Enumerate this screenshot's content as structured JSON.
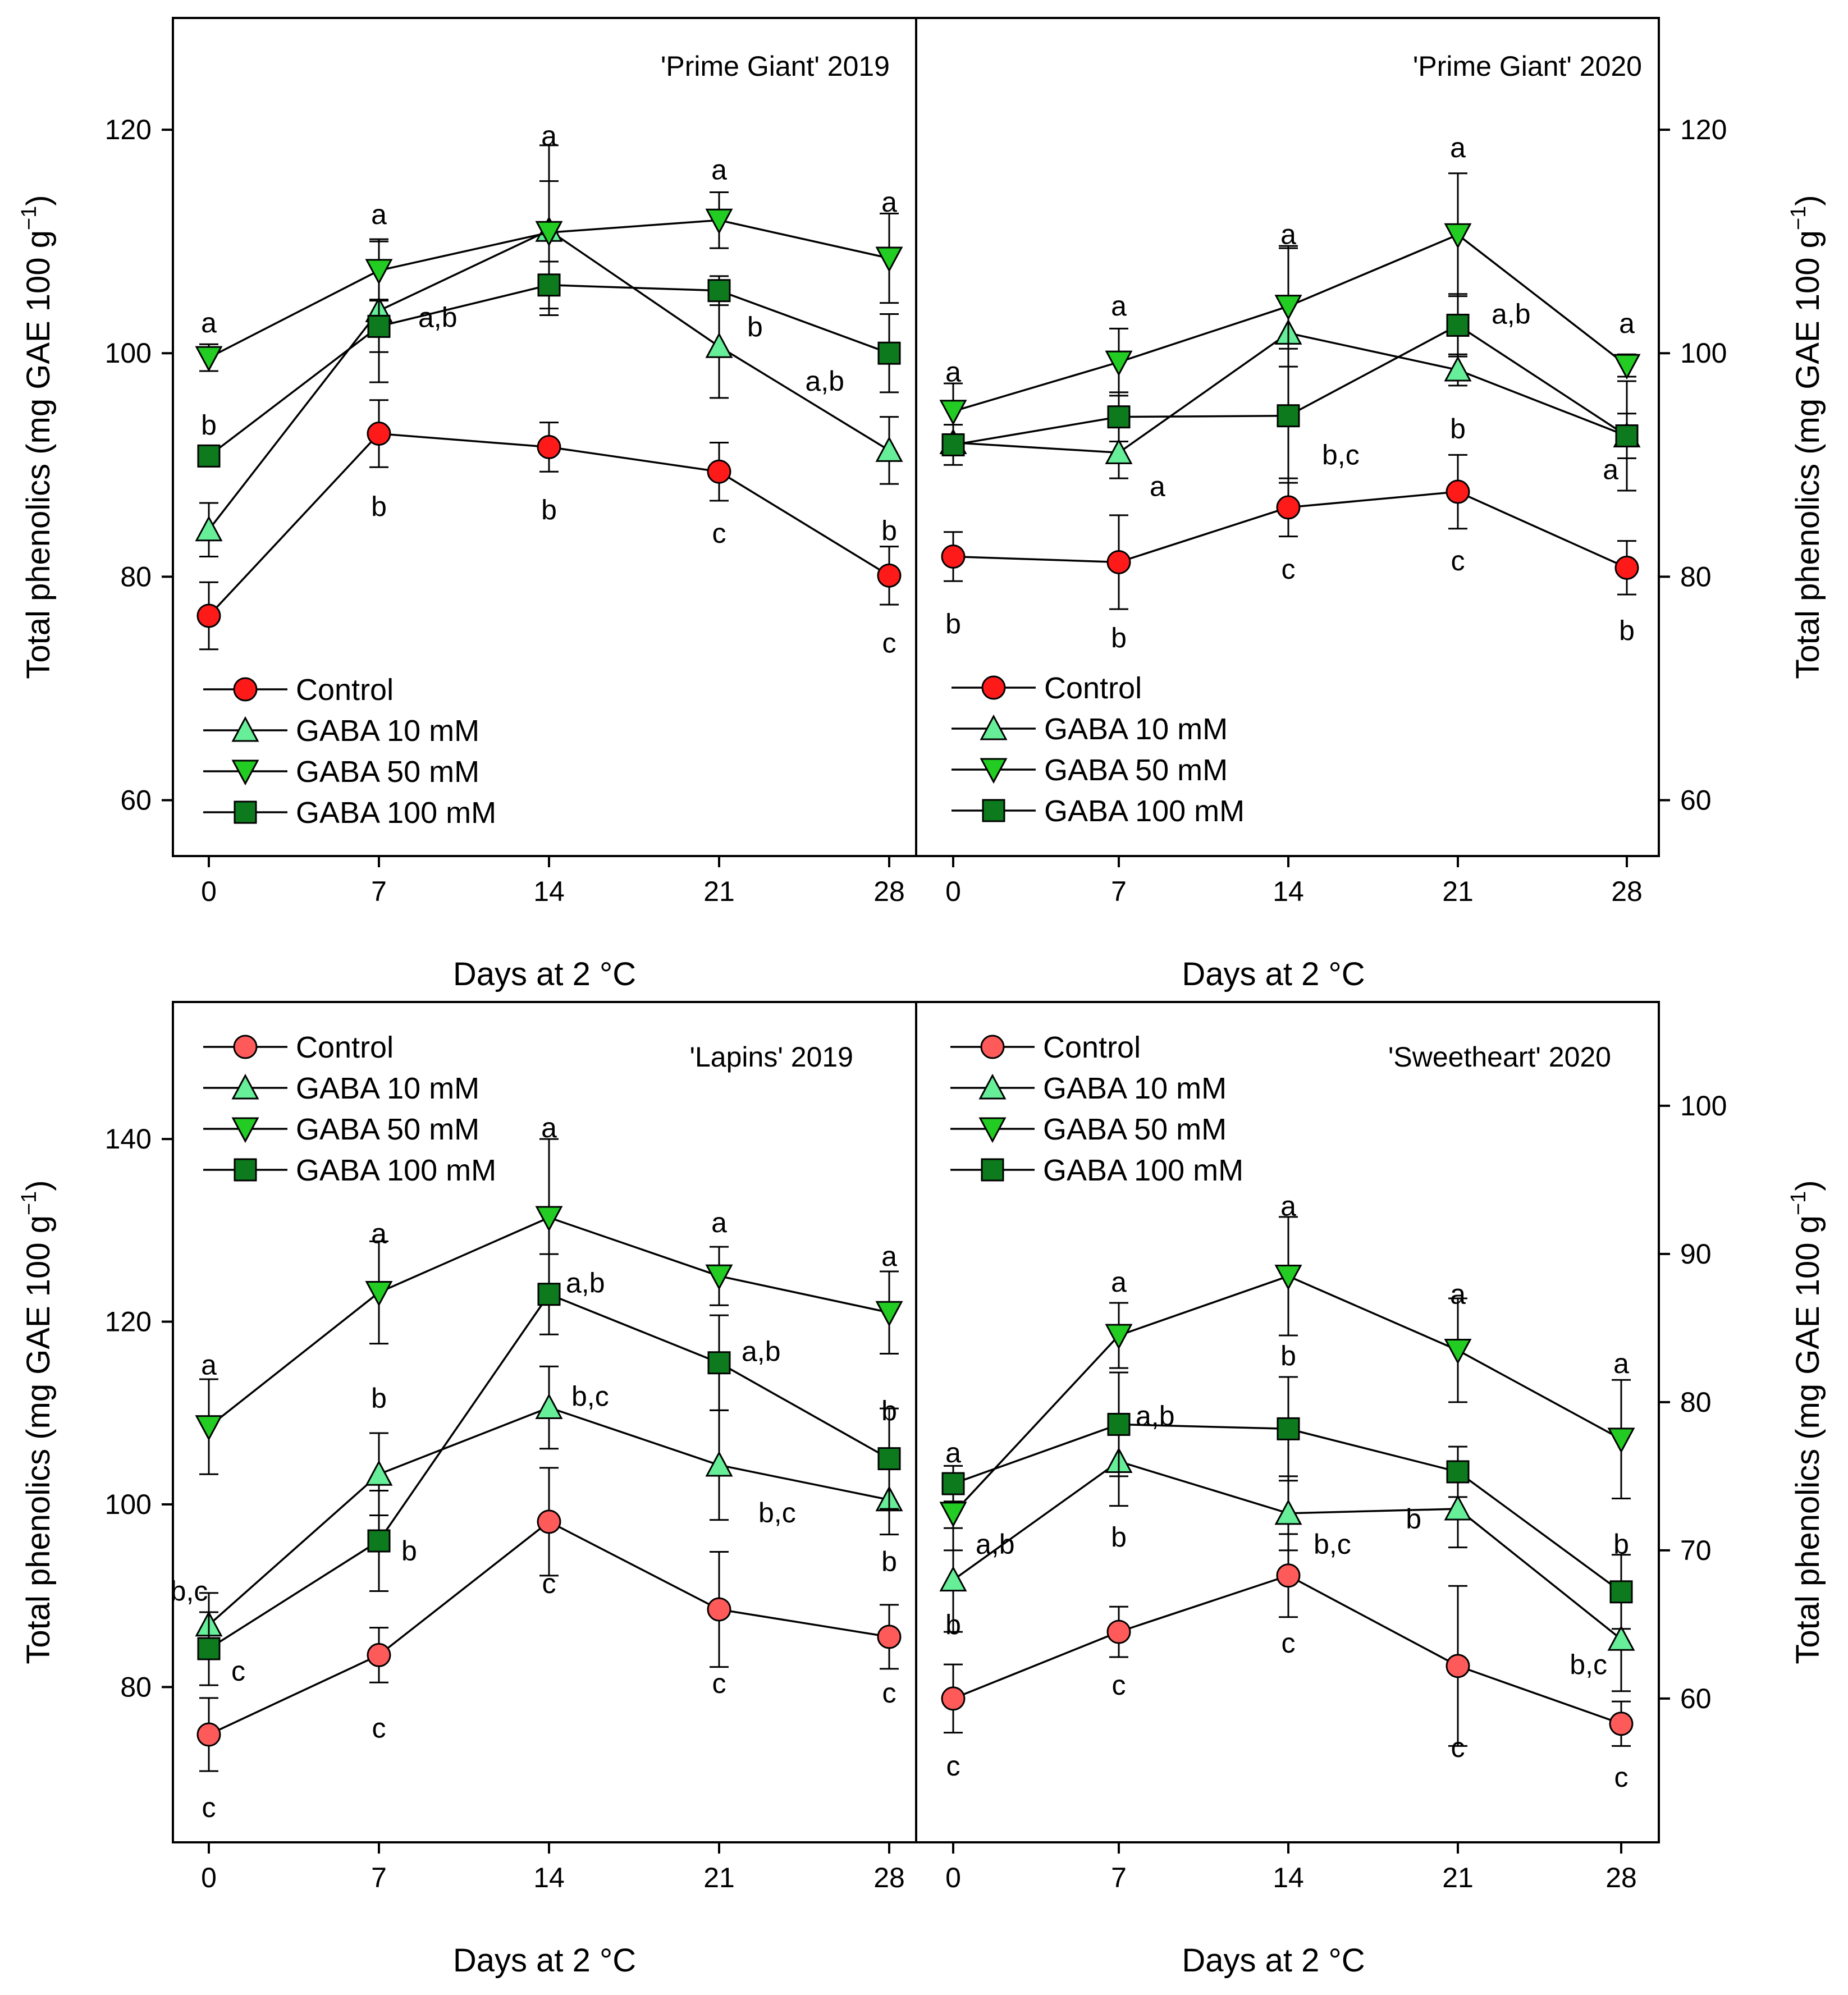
{
  "figure": {
    "x_axis_label": "Days at 2 °C",
    "y_axis_label": "Total phenolics (mg GAE 100 g",
    "y_axis_unit_exponent": "−1",
    "y_axis_label_close": ")"
  },
  "colors": {
    "Control": "#ff1a1a",
    "Control_light": "#ff5a5a",
    "GABA_10": "#66ee99",
    "GABA_50": "#22cc22",
    "GABA_100": "#0e7a1e",
    "axis": "#000000"
  },
  "chart_data": [
    {
      "type": "line",
      "title": "'Prime Giant' 2019",
      "xlabel": "Days at 2 °C",
      "ylabel": "Total phenolics (mg GAE 100 g−1)",
      "x": [
        0,
        7,
        14,
        21,
        28
      ],
      "x_ticks": [
        "0",
        "7",
        "14",
        "21",
        "28"
      ],
      "ylim": [
        55,
        130
      ],
      "y_ticks": [
        60,
        80,
        100,
        120
      ],
      "y_axis_side": "left",
      "legend_position": "bottom-left",
      "series": [
        {
          "name": "Control",
          "marker": "circle",
          "color": "#ff1a1a",
          "values": [
            76.5,
            92.8,
            91.6,
            89.4,
            80.1
          ],
          "errors": [
            3.0,
            3.0,
            2.2,
            2.6,
            2.6
          ],
          "labels": [
            "",
            "b",
            "b",
            "c",
            "c"
          ]
        },
        {
          "name": "GABA  10 mM",
          "marker": "triangle-up",
          "color": "#66ee99",
          "values": [
            84.2,
            103.8,
            111.0,
            100.6,
            91.3
          ],
          "errors": [
            2.4,
            6.4,
            7.6,
            4.6,
            3.0
          ],
          "labels": [
            "",
            "a,b",
            "",
            "b",
            "b"
          ]
        },
        {
          "name": "GABA  50 mM",
          "marker": "triangle-down",
          "color": "#22cc22",
          "values": [
            99.6,
            107.4,
            110.8,
            111.9,
            108.5
          ],
          "errors": [
            1.2,
            2.6,
            4.6,
            2.5,
            4.0
          ],
          "labels": [
            "a",
            "a",
            "a",
            "a",
            "a"
          ]
        },
        {
          "name": "GABA 100 mM",
          "marker": "square",
          "color": "#0e7a1e",
          "values": [
            90.8,
            102.4,
            106.1,
            105.6,
            100.0
          ],
          "errors": [
            0.7,
            2.3,
            2.1,
            1.3,
            3.5
          ],
          "labels": [
            "b",
            "",
            "",
            "",
            "a,b"
          ]
        }
      ]
    },
    {
      "type": "line",
      "title": "'Prime Giant' 2020",
      "xlabel": "Days at 2 °C",
      "ylabel": "Total phenolics (mg GAE 100 g−1)",
      "x": [
        0,
        7,
        14,
        21,
        28
      ],
      "x_ticks": [
        "0",
        "7",
        "14",
        "21",
        "28"
      ],
      "ylim": [
        55,
        130
      ],
      "y_ticks": [
        60,
        80,
        100,
        120
      ],
      "y_axis_side": "right",
      "legend_position": "bottom-left",
      "series": [
        {
          "name": "Control",
          "marker": "circle",
          "color": "#ff1a1a",
          "values": [
            81.8,
            81.3,
            86.2,
            87.6,
            80.8
          ],
          "errors": [
            2.2,
            4.2,
            2.6,
            3.3,
            2.4
          ],
          "labels": [
            "b",
            "b",
            "c",
            "c",
            "b"
          ]
        },
        {
          "name": "GABA  10 mM",
          "marker": "triangle-up",
          "color": "#66ee99",
          "values": [
            92.0,
            91.1,
            101.8,
            98.5,
            92.6
          ],
          "errors": [
            0.7,
            2.3,
            7.6,
            1.4,
            4.9
          ],
          "labels": [
            "",
            "a",
            "",
            "b",
            "a"
          ]
        },
        {
          "name": "GABA  50 mM",
          "marker": "triangle-down",
          "color": "#22cc22",
          "values": [
            94.8,
            99.2,
            104.2,
            110.6,
            98.9
          ],
          "errors": [
            2.5,
            3.0,
            5.4,
            5.5,
            1.0
          ],
          "labels": [
            "a",
            "a",
            "a",
            "a",
            "a"
          ]
        },
        {
          "name": "GABA 100 mM",
          "marker": "square",
          "color": "#0e7a1e",
          "values": [
            91.8,
            94.3,
            94.4,
            102.5,
            92.6
          ],
          "errors": [
            1.8,
            2.2,
            6.0,
            2.8,
            2.0
          ],
          "labels": [
            "",
            "",
            "b,c",
            "a,b",
            ""
          ]
        }
      ]
    },
    {
      "type": "line",
      "title": "'Lapins' 2019",
      "xlabel": "Days at 2 °C",
      "ylabel": "Total phenolics (mg GAE 100 g−1)",
      "x": [
        0,
        7,
        14,
        21,
        28
      ],
      "x_ticks": [
        "0",
        "7",
        "14",
        "21",
        "28"
      ],
      "ylim": [
        63,
        155
      ],
      "y_ticks": [
        80,
        100,
        120,
        140
      ],
      "y_axis_side": "left",
      "legend_position": "top-left",
      "series": [
        {
          "name": "Control",
          "marker": "circle",
          "color": "#ff5a5a",
          "values": [
            74.8,
            83.5,
            98.1,
            88.5,
            85.5
          ],
          "errors": [
            4.0,
            3.0,
            5.9,
            6.3,
            3.5
          ],
          "labels": [
            "c",
            "c",
            "c",
            "c",
            "c"
          ]
        },
        {
          "name": "GABA 10 mM",
          "marker": "triangle-up",
          "color": "#66ee99",
          "values": [
            86.8,
            103.3,
            110.6,
            104.3,
            100.5
          ],
          "errors": [
            3.5,
            4.5,
            4.5,
            6.0,
            3.8
          ],
          "labels": [
            "b,c",
            "b",
            "b,c",
            "b,c",
            "b"
          ]
        },
        {
          "name": "GABA 50 mM",
          "marker": "triangle-down",
          "color": "#22cc22",
          "values": [
            108.5,
            123.2,
            131.4,
            125.0,
            121.0
          ],
          "errors": [
            5.2,
            5.6,
            8.6,
            3.2,
            4.5
          ],
          "labels": [
            "a",
            "a",
            "a",
            "a",
            "a"
          ]
        },
        {
          "name": "GABA 100 mM",
          "marker": "square",
          "color": "#0e7a1e",
          "values": [
            84.2,
            96.0,
            123.0,
            115.5,
            105.0
          ],
          "errors": [
            4.0,
            5.5,
            4.4,
            5.2,
            5.5
          ],
          "labels": [
            "c",
            "b",
            "a,b",
            "a,b",
            "b"
          ]
        }
      ]
    },
    {
      "type": "line",
      "title": "'Sweetheart' 2020",
      "xlabel": "Days at 2 °C",
      "ylabel": "Total phenolics (mg GAE 100 g−1)",
      "x": [
        0,
        7,
        14,
        21,
        28
      ],
      "x_ticks": [
        "0",
        "7",
        "14",
        "21",
        "28"
      ],
      "ylim": [
        50.3,
        107
      ],
      "y_ticks": [
        60,
        70,
        80,
        90,
        100
      ],
      "y_axis_side": "right",
      "legend_position": "top-left",
      "series": [
        {
          "name": "Control",
          "marker": "circle",
          "color": "#ff5a5a",
          "values": [
            60.0,
            64.5,
            68.3,
            62.2,
            58.3
          ],
          "errors": [
            2.3,
            1.7,
            2.8,
            5.4,
            1.5
          ],
          "labels": [
            "c",
            "c",
            "c",
            "c",
            "c"
          ]
        },
        {
          "name": "GABA 10 mM",
          "marker": "triangle-up",
          "color": "#66ee99",
          "values": [
            68.0,
            76.0,
            72.5,
            72.8,
            64.0
          ],
          "errors": [
            3.5,
            3.0,
            2.5,
            2.6,
            3.5
          ],
          "labels": [
            "b",
            "b",
            "b,c",
            "b",
            "b,c"
          ]
        },
        {
          "name": "GABA 50 mM",
          "marker": "triangle-down",
          "color": "#22cc22",
          "values": [
            72.5,
            84.5,
            88.5,
            83.5,
            77.5
          ],
          "errors": [
            2.5,
            2.2,
            4.0,
            3.5,
            4.0
          ],
          "labels": [
            "a,b",
            "a",
            "a",
            "a",
            "a"
          ]
        },
        {
          "name": "GABA 100 mM",
          "marker": "square",
          "color": "#0e7a1e",
          "values": [
            74.5,
            78.5,
            78.2,
            75.3,
            67.2
          ],
          "errors": [
            1.2,
            3.5,
            3.5,
            1.7,
            2.5
          ],
          "labels": [
            "a",
            "a,b",
            "b",
            "",
            "b"
          ]
        }
      ]
    }
  ]
}
